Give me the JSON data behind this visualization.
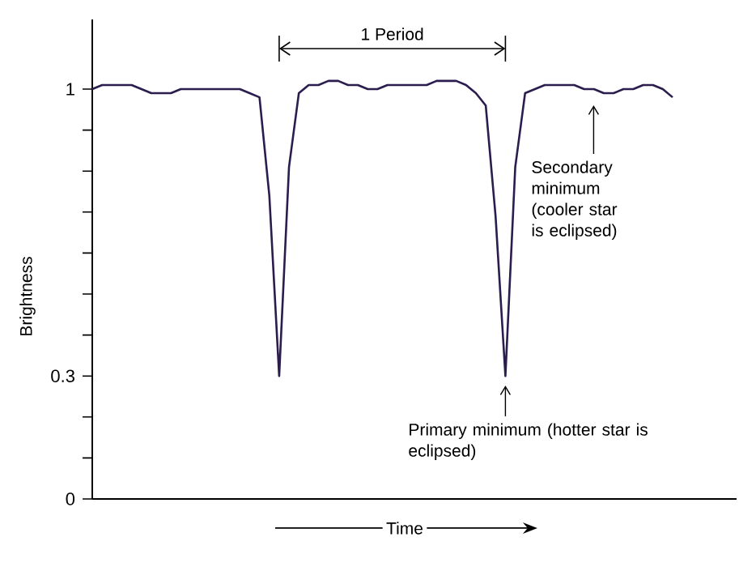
{
  "chart_data": {
    "type": "line",
    "ylabel": "Brightness",
    "xlabel": "Time",
    "annotations": [
      "1 Period",
      "Secondary minimum (cooler star is eclipsed)",
      "Primary minimum (hotter star is eclipsed)"
    ],
    "categories": [
      null,
      null,
      null,
      null,
      null,
      null,
      null,
      null,
      null,
      null,
      null,
      null,
      null,
      null,
      null,
      null,
      null,
      null,
      null,
      null,
      null,
      null,
      null,
      null,
      null,
      null,
      null,
      null,
      null,
      null,
      null,
      null,
      null,
      null,
      null,
      null,
      null,
      null,
      null,
      null,
      null,
      null,
      null,
      null,
      null,
      null,
      null,
      null,
      null,
      null,
      null,
      null,
      null,
      null,
      null,
      null,
      null,
      null,
      null,
      null
    ],
    "series": [
      {
        "color": "#2b1d4e",
        "values": [
          1.0,
          1.01,
          1.01,
          1.01,
          1.01,
          1.0,
          0.99,
          0.99,
          0.99,
          1.0,
          1.0,
          1.0,
          1.0,
          1.0,
          1.0,
          1.0,
          0.99,
          0.98,
          0.74,
          0.3,
          0.81,
          0.99,
          1.01,
          1.01,
          1.02,
          1.02,
          1.01,
          1.01,
          1.0,
          1.0,
          1.01,
          1.01,
          1.01,
          1.01,
          1.01,
          1.02,
          1.02,
          1.02,
          1.01,
          0.99,
          0.96,
          0.69,
          0.3,
          0.81,
          0.99,
          1.0,
          1.01,
          1.01,
          1.01,
          1.01,
          1.0,
          1.0,
          0.99,
          0.99,
          1.0,
          1.0,
          1.01,
          1.01,
          1.0,
          0.98
        ]
      }
    ],
    "ylim": [
      0,
      1.17
    ],
    "yticks": [
      0,
      {
        "value": 0.1,
        "label": null
      },
      {
        "value": 0.2,
        "label": null
      },
      0.3,
      {
        "value": 0.4,
        "label": null
      },
      {
        "value": 0.5,
        "label": null
      },
      {
        "value": 0.6,
        "label": null
      },
      {
        "value": 0.7,
        "label": null
      },
      {
        "value": 0.8,
        "label": null
      },
      {
        "value": 0.9,
        "label": null
      },
      1
    ],
    "tick_labels": "y"
  }
}
